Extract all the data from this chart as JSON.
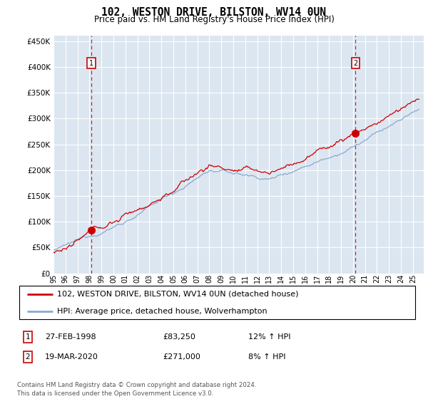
{
  "title": "102, WESTON DRIVE, BILSTON, WV14 0UN",
  "subtitle": "Price paid vs. HM Land Registry's House Price Index (HPI)",
  "legend_line1": "102, WESTON DRIVE, BILSTON, WV14 0UN (detached house)",
  "legend_line2": "HPI: Average price, detached house, Wolverhampton",
  "annotation1_date": "27-FEB-1998",
  "annotation1_price": "£83,250",
  "annotation1_hpi": "12% ↑ HPI",
  "annotation2_date": "19-MAR-2020",
  "annotation2_price": "£271,000",
  "annotation2_hpi": "8% ↑ HPI",
  "footer": "Contains HM Land Registry data © Crown copyright and database right 2024.\nThis data is licensed under the Open Government Licence v3.0.",
  "sale1_year": 1998.15,
  "sale1_value": 83250,
  "sale2_year": 2020.21,
  "sale2_value": 271000,
  "ylim_min": 0,
  "ylim_max": 460000,
  "yticks": [
    0,
    50000,
    100000,
    150000,
    200000,
    250000,
    300000,
    350000,
    400000,
    450000
  ],
  "red_line_color": "#cc0000",
  "blue_line_color": "#88aacc",
  "plot_bg_color": "#dce6f1",
  "grid_color": "#ffffff",
  "annotation_box_color": "#cc0000",
  "xlim_min": 1995,
  "xlim_max": 2025.9
}
